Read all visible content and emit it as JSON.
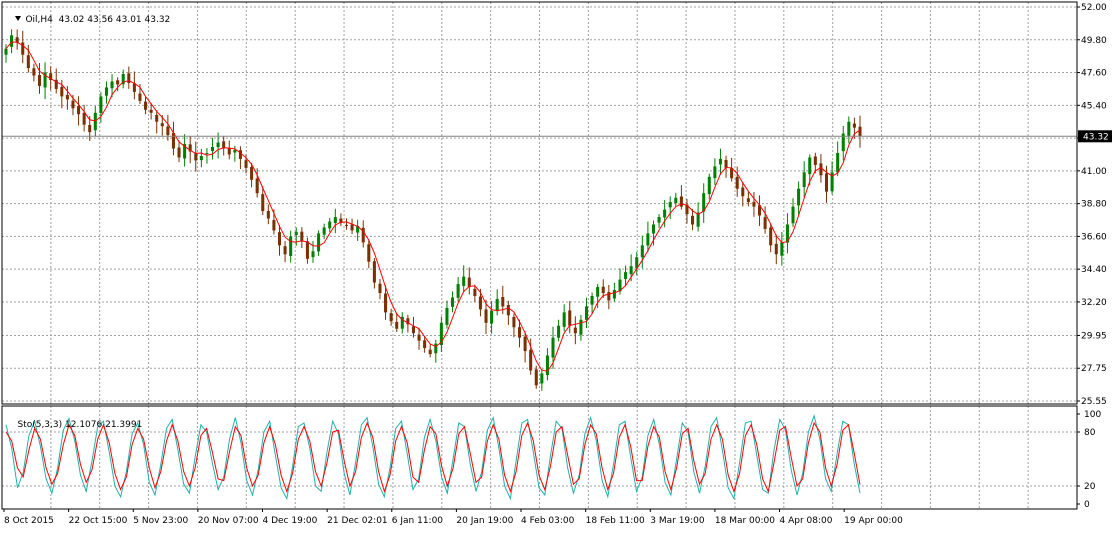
{
  "header": {
    "symbol_label": "Oil,H4",
    "quote": "43.02 43.56 43.01 43.32",
    "menu_icon": "triangle-down-icon"
  },
  "oscillator_header": {
    "label": "Sto(5,3,3)",
    "main_value": "12.1076",
    "signal_value": "21.3991"
  },
  "colors": {
    "background": "#ffffff",
    "grid": "#a0a0a0",
    "bull_candle": "#008000",
    "bear_candle": "#7a3000",
    "moving_average": "#ff0000",
    "stoch_main": "#20b2aa",
    "stoch_signal": "#ff0000",
    "price_line": "#808080",
    "price_box": "#000000"
  },
  "chart_data": [
    {
      "type": "candlestick",
      "title": "Oil,H4",
      "ylim": [
        25.55,
        52.0
      ],
      "y_ticks": [
        "52.00",
        "49.80",
        "47.60",
        "45.40",
        "43.20",
        "41.00",
        "38.80",
        "36.60",
        "34.40",
        "32.20",
        "29.95",
        "27.75",
        "25.55"
      ],
      "x_ticks": [
        "8 Oct 2015",
        "22 Oct 15:00",
        "5 Nov 23:00",
        "20 Nov 07:00",
        "4 Dec 19:00",
        "21 Dec 02:01",
        "6 Jan 11:00",
        "20 Jan 19:00",
        "4 Feb 03:00",
        "18 Feb 11:00",
        "3 Mar 19:00",
        "18 Mar 00:00",
        "4 Apr 08:00",
        "19 Apr 00:00"
      ],
      "current_price": "43.32",
      "grid": true,
      "series": [
        {
          "name": "close",
          "values": [
            49.2,
            50.1,
            49.6,
            48.8,
            47.9,
            47.4,
            46.7,
            47.6,
            47.1,
            46.5,
            46.0,
            45.8,
            45.2,
            44.8,
            44.1,
            43.6,
            44.9,
            46.0,
            46.6,
            47.0,
            46.8,
            47.5,
            46.9,
            46.3,
            45.7,
            45.1,
            44.9,
            44.3,
            44.0,
            43.4,
            42.5,
            41.9,
            42.8,
            42.3,
            41.7,
            42.0,
            42.2,
            42.6,
            42.9,
            42.5,
            42.1,
            42.4,
            41.8,
            41.2,
            40.4,
            39.5,
            38.3,
            37.8,
            37.0,
            36.0,
            35.4,
            36.6,
            36.9,
            36.3,
            35.1,
            35.6,
            36.8,
            37.2,
            37.6,
            37.9,
            37.5,
            37.3,
            37.0,
            37.3,
            36.2,
            34.9,
            33.5,
            32.8,
            31.5,
            30.9,
            30.4,
            31.2,
            30.7,
            30.1,
            29.6,
            29.1,
            28.7,
            29.4,
            30.8,
            31.8,
            32.5,
            33.4,
            33.9,
            33.2,
            32.6,
            31.7,
            30.8,
            31.6,
            32.4,
            31.9,
            31.3,
            30.5,
            29.8,
            28.9,
            27.6,
            26.6,
            27.4,
            28.6,
            29.8,
            30.6,
            31.5,
            30.6,
            30.1,
            31.0,
            31.9,
            32.6,
            33.2,
            32.8,
            32.3,
            33.0,
            33.7,
            34.2,
            34.6,
            35.2,
            36.0,
            36.8,
            37.4,
            37.9,
            38.4,
            38.9,
            39.2,
            38.6,
            38.1,
            37.4,
            38.2,
            39.5,
            40.6,
            41.3,
            41.8,
            41.2,
            40.5,
            39.8,
            39.3,
            38.9,
            38.6,
            38.0,
            37.1,
            36.0,
            35.4,
            36.2,
            37.4,
            38.6,
            39.8,
            40.9,
            41.9,
            41.4,
            40.7,
            39.6,
            40.9,
            42.2,
            43.5,
            44.3,
            43.9,
            43.32
          ]
        }
      ]
    },
    {
      "type": "line",
      "title": "Sto(5,3,3)",
      "ylim": [
        0,
        100
      ],
      "y_ticks": [
        "100",
        "80",
        "20",
        "0"
      ],
      "levels": [
        80,
        20
      ],
      "series": [
        {
          "name": "main",
          "values": [
            88,
            62,
            18,
            35,
            76,
            92,
            64,
            28,
            12,
            40,
            82,
            95,
            70,
            32,
            14,
            48,
            86,
            92,
            58,
            20,
            8,
            36,
            78,
            90,
            66,
            24,
            10,
            44,
            84,
            94,
            60,
            22,
            12,
            52,
            88,
            80,
            46,
            16,
            30,
            72,
            96,
            68,
            26,
            10,
            38,
            80,
            92,
            54,
            18,
            6,
            42,
            86,
            90,
            62,
            20,
            14,
            58,
            92,
            78,
            34,
            10,
            46,
            88,
            96,
            64,
            22,
            8,
            40,
            84,
            92,
            56,
            16,
            28,
            74,
            94,
            70,
            30,
            12,
            50,
            90,
            86,
            44,
            14,
            36,
            82,
            96,
            62,
            20,
            6,
            48,
            90,
            94,
            58,
            18,
            10,
            54,
            92,
            84,
            40,
            12,
            32,
            78,
            96,
            70,
            26,
            8,
            44,
            88,
            92,
            52,
            14,
            30,
            76,
            94,
            66,
            24,
            10,
            50,
            90,
            80,
            36,
            12,
            42,
            86,
            96,
            60,
            18,
            6,
            46,
            90,
            92,
            54,
            16,
            12,
            60,
            94,
            82,
            38,
            10,
            34,
            80,
            98,
            72,
            28,
            14,
            56,
            92,
            88,
            44,
            12
          ]
        },
        {
          "name": "signal",
          "values": [
            80,
            70,
            40,
            30,
            60,
            84,
            72,
            40,
            22,
            34,
            66,
            88,
            76,
            44,
            24,
            38,
            72,
            88,
            68,
            34,
            16,
            30,
            66,
            84,
            72,
            40,
            18,
            36,
            70,
            88,
            70,
            36,
            20,
            40,
            76,
            84,
            58,
            28,
            26,
            58,
            86,
            76,
            40,
            20,
            32,
            68,
            86,
            66,
            32,
            14,
            34,
            72,
            86,
            70,
            36,
            20,
            46,
            80,
            82,
            48,
            20,
            36,
            74,
            90,
            74,
            36,
            14,
            32,
            70,
            86,
            68,
            30,
            24,
            60,
            86,
            78,
            42,
            20,
            40,
            78,
            86,
            56,
            24,
            30,
            70,
            88,
            72,
            32,
            14,
            36,
            76,
            90,
            70,
            32,
            16,
            42,
            80,
            86,
            54,
            22,
            28,
            66,
            88,
            78,
            40,
            16,
            34,
            74,
            88,
            64,
            26,
            26,
            64,
            86,
            74,
            36,
            16,
            40,
            78,
            84,
            48,
            22,
            34,
            72,
            88,
            72,
            32,
            14,
            34,
            76,
            88,
            66,
            28,
            14,
            46,
            82,
            86,
            52,
            20,
            28,
            68,
            90,
            80,
            40,
            20,
            44,
            82,
            88,
            56,
            21.4
          ]
        }
      ]
    }
  ]
}
